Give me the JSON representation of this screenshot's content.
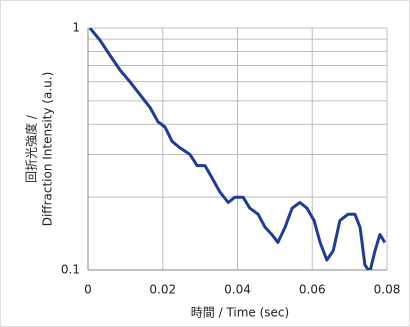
{
  "chart_data": {
    "type": "line",
    "x_label": "時間 / Time (sec)",
    "y_label": [
      "回折光強度 /",
      "Diffraction Intensity (a.u.)"
    ],
    "log_y": true,
    "grid": true,
    "color": "#1f3c96",
    "xlim": [
      0,
      0.08
    ],
    "xticks": [
      0,
      0.02,
      0.04,
      0.06,
      0.08
    ],
    "ylim": [
      0.1,
      1
    ],
    "yticks": [
      0.1,
      1
    ],
    "yminor": [
      0.2,
      0.3,
      0.4,
      0.5,
      0.6,
      0.7,
      0.8,
      0.9
    ],
    "x": [
      0.0005,
      0.0032,
      0.0059,
      0.0086,
      0.0112,
      0.0139,
      0.0166,
      0.0187,
      0.0206,
      0.0225,
      0.0246,
      0.0273,
      0.0292,
      0.0313,
      0.0332,
      0.0353,
      0.0375,
      0.0393,
      0.0415,
      0.0433,
      0.0455,
      0.0474,
      0.0492,
      0.0508,
      0.0527,
      0.0546,
      0.0567,
      0.0586,
      0.0605,
      0.0621,
      0.0639,
      0.0656,
      0.0674,
      0.0696,
      0.0714,
      0.0728,
      0.0741,
      0.0754,
      0.0768,
      0.0781,
      0.0794
    ],
    "values": [
      1.0,
      0.89,
      0.77,
      0.67,
      0.6,
      0.53,
      0.47,
      0.41,
      0.39,
      0.34,
      0.32,
      0.3,
      0.27,
      0.27,
      0.24,
      0.21,
      0.19,
      0.2,
      0.2,
      0.18,
      0.17,
      0.15,
      0.14,
      0.13,
      0.15,
      0.18,
      0.19,
      0.18,
      0.16,
      0.13,
      0.11,
      0.12,
      0.16,
      0.17,
      0.17,
      0.15,
      0.105,
      0.098,
      0.12,
      0.14,
      0.13
    ]
  }
}
